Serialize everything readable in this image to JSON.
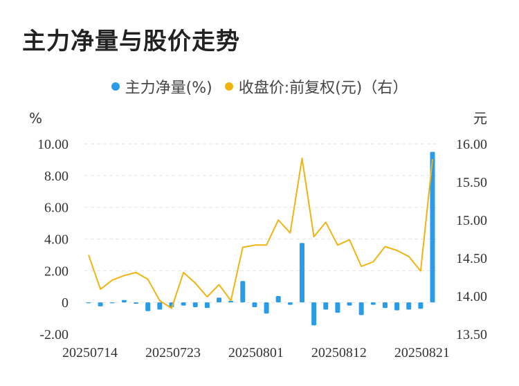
{
  "title": "主力净量与股价走势",
  "colors": {
    "bar": "#2a9be6",
    "line": "#f1b312",
    "grid": "#e6e6e6"
  },
  "chart_data": {
    "type": "bar+line",
    "title": "主力净量与股价走势",
    "legend": {
      "position": "top-center"
    },
    "grid": true,
    "x_tick_labels": [
      "20250714",
      "20250723",
      "20250801",
      "20250812",
      "20250821"
    ],
    "x_tick_indices": [
      0,
      7,
      14,
      21,
      28
    ],
    "y_left": {
      "unit": "%",
      "ticks": [
        "10.00",
        "8.00",
        "6.00",
        "4.00",
        "2.00",
        "0",
        "-2.00"
      ],
      "range": [
        -2,
        10
      ]
    },
    "y_right": {
      "unit": "元",
      "ticks": [
        "16.00",
        "15.50",
        "15.00",
        "14.50",
        "14.00",
        "13.50"
      ],
      "range": [
        13.5,
        16
      ]
    },
    "series": [
      {
        "name": "主力净量(%)",
        "kind": "bar",
        "axis": "left",
        "values": [
          -0.05,
          -0.25,
          -0.05,
          0.15,
          -0.08,
          -0.55,
          -0.45,
          -0.3,
          -0.2,
          -0.3,
          -0.35,
          0.3,
          0.1,
          1.35,
          -0.3,
          -0.7,
          0.4,
          -0.15,
          3.75,
          -1.45,
          -0.45,
          -0.65,
          -0.2,
          -0.8,
          -0.15,
          -0.35,
          -0.5,
          -0.45,
          -0.4,
          9.5
        ]
      },
      {
        "name": "收盘价:前复权(元)（右）",
        "kind": "line",
        "axis": "right",
        "values": [
          14.54,
          14.09,
          14.21,
          14.27,
          14.31,
          14.22,
          13.94,
          13.84,
          14.31,
          14.17,
          13.99,
          14.15,
          13.94,
          14.64,
          14.67,
          14.67,
          15.0,
          14.83,
          15.81,
          14.78,
          14.97,
          14.67,
          14.74,
          14.39,
          14.45,
          14.65,
          14.6,
          14.52,
          14.33,
          15.8
        ]
      }
    ]
  }
}
